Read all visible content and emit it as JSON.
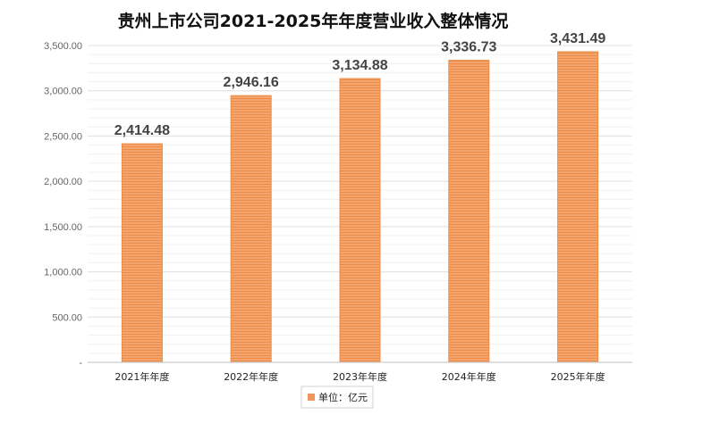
{
  "chart_data": {
    "type": "bar",
    "title": "贵州上市公司2021-2025年年度营业收入整体情况",
    "categories": [
      "2021年年度",
      "2022年年度",
      "2023年年度",
      "2024年年度",
      "2025年年度"
    ],
    "series": [
      {
        "name": "单位：亿元",
        "values": [
          2414.48,
          2946.16,
          3134.88,
          3336.73,
          3431.49
        ]
      }
    ],
    "data_labels": [
      "2,414.48",
      "2,946.16",
      "3,134.88",
      "3,336.73",
      "3,431.49"
    ],
    "yticks": [
      "-",
      "500.00",
      "1,000.00",
      "1,500.00",
      "2,000.00",
      "2,500.00",
      "3,000.00",
      "3,500.00"
    ],
    "ylim": [
      0,
      3500
    ],
    "xlabel": "",
    "ylabel": "",
    "grid": true,
    "legend": "bottom-center",
    "colors": {
      "bar": "#f4a46c",
      "bar_stripe": "#eb8c48",
      "legend_swatch": "#f0965a"
    }
  }
}
